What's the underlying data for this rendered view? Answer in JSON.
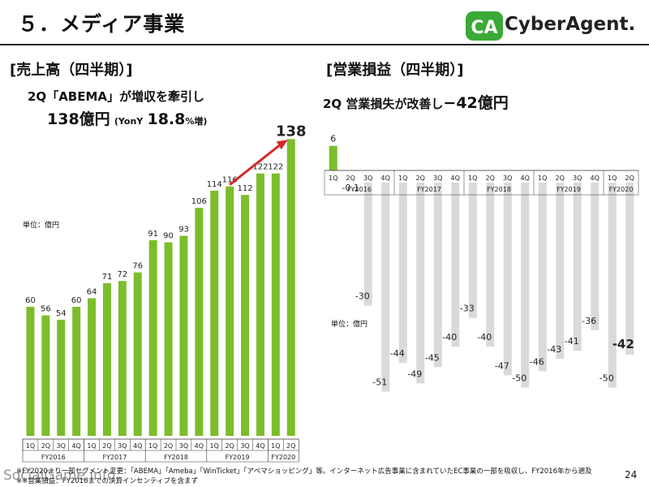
{
  "page": {
    "title": "５．メディア事業",
    "page_number": "24"
  },
  "logo": {
    "mark": "CA",
    "text": "CyberAgent."
  },
  "left_panel": {
    "section_title": "[売上高（四半期）]",
    "subtitle_line1": "2Q「ABEMA」が増収を牽引し",
    "subtitle_line2_value": "138億円",
    "subtitle_line2_yoy": "(YonY",
    "subtitle_line2_pct": "18.8",
    "subtitle_line2_suffix": "%増)",
    "unit_label": "単位：億円"
  },
  "right_panel": {
    "section_title": "[営業損益（四半期）]",
    "subtitle_prefix": "2Q 営業損失が改善し",
    "subtitle_value": "−42億円",
    "unit_label": "単位：億円"
  },
  "chart_data": [
    {
      "type": "bar",
      "title": "[売上高（四半期）]",
      "ylabel": "単位：億円",
      "categories": [
        "1Q",
        "2Q",
        "3Q",
        "4Q",
        "1Q",
        "2Q",
        "3Q",
        "4Q",
        "1Q",
        "2Q",
        "3Q",
        "4Q",
        "1Q",
        "2Q",
        "3Q",
        "4Q",
        "1Q",
        "2Q"
      ],
      "fiscal_years": [
        {
          "label": "FY2016",
          "count": 4
        },
        {
          "label": "FY2017",
          "count": 4
        },
        {
          "label": "FY2018",
          "count": 4
        },
        {
          "label": "FY2019",
          "count": 4
        },
        {
          "label": "FY2020",
          "count": 2
        }
      ],
      "values": [
        60,
        56,
        54,
        60,
        64,
        71,
        72,
        76,
        91,
        90,
        93,
        106,
        114,
        116,
        112,
        122,
        122,
        138
      ],
      "ylim": [
        0,
        140
      ],
      "bar_color": "#7cbd2c",
      "arrow_color": "#d42a2a"
    },
    {
      "type": "bar",
      "title": "[営業損益（四半期）]",
      "ylabel": "単位：億円",
      "categories": [
        "1Q",
        "2Q",
        "3Q",
        "4Q",
        "1Q",
        "2Q",
        "3Q",
        "4Q",
        "1Q",
        "2Q",
        "3Q",
        "4Q",
        "1Q",
        "2Q",
        "3Q",
        "4Q",
        "1Q",
        "2Q"
      ],
      "fiscal_years": [
        {
          "label": "FY2016",
          "count": 4
        },
        {
          "label": "FY2017",
          "count": 4
        },
        {
          "label": "FY2018",
          "count": 4
        },
        {
          "label": "FY2019",
          "count": 4
        },
        {
          "label": "FY2020",
          "count": 2
        }
      ],
      "values": [
        6,
        -0.1,
        -30,
        -51,
        -44,
        -49,
        -45,
        -40,
        -33,
        -40,
        -47,
        -50,
        -46,
        -43,
        -41,
        -36,
        -50,
        -42
      ],
      "value_labels": [
        "6",
        "-0.1",
        "-30",
        "-51",
        "-44",
        "-49",
        "-45",
        "-40",
        "-33",
        "-40",
        "-47",
        "-50",
        "-46",
        "-43",
        "-41",
        "-36",
        "-50",
        "-42"
      ],
      "ylim": [
        -55,
        8
      ],
      "positive_color": "#7cbd2c",
      "negative_color": "#dadada"
    }
  ],
  "footnotes": {
    "line1": "※FY2020より一部セグメント変更：「ABEMA」「Ameba」「WinTicket」「アベマショッピング」等。インターネット広告事業に含まれていたEC事業の一部を吸収し、FY2016年から遡及",
    "line2": "※※営業損益：FY2016までの決算インセンティブを含まず"
  },
  "watermark": "SocialGame.info",
  "colors": {
    "green": "#7cbd2c",
    "red": "#d42a2a",
    "grey": "#dadada",
    "logo_green": "#3aa935"
  }
}
